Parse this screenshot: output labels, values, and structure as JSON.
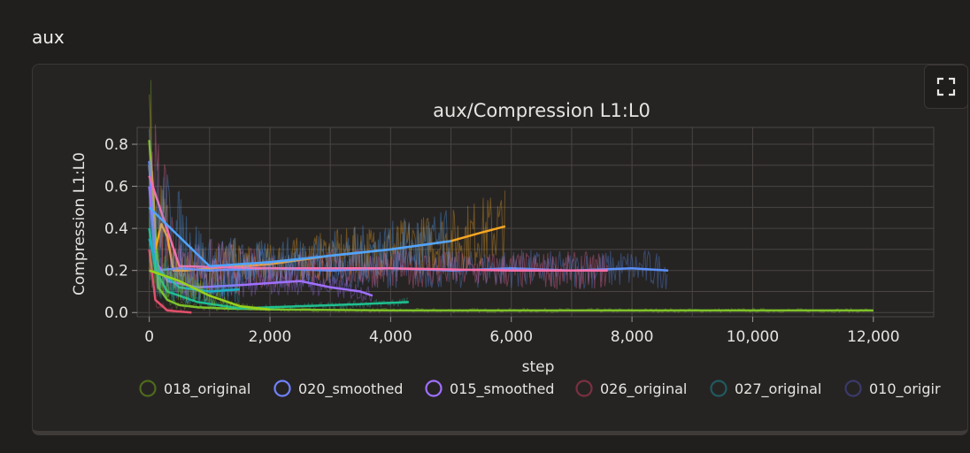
{
  "section": {
    "title": "aux"
  },
  "panel": {
    "fullscreen_icon": "fullscreen-icon"
  },
  "chart_data": {
    "type": "line",
    "title": "aux/Compression L1:L0",
    "xlabel": "step",
    "ylabel": "Compression L1:L0",
    "xlim": [
      -200,
      13000
    ],
    "ylim": [
      -0.02,
      0.88
    ],
    "xticks": [
      0,
      2000,
      4000,
      6000,
      8000,
      10000,
      12000
    ],
    "xtick_labels": [
      "0",
      "2,000",
      "4,000",
      "6,000",
      "8,000",
      "10,000",
      "12,000"
    ],
    "yticks": [
      0.0,
      0.2,
      0.4,
      0.6,
      0.8
    ],
    "ytick_labels": [
      "0.0",
      "0.2",
      "0.4",
      "0.6",
      "0.8"
    ],
    "grid": true,
    "legend_position": "bottom",
    "legend": [
      {
        "name": "018_original",
        "color": "#4e6a1c"
      },
      {
        "name": "020_smoothed",
        "color": "#6f82ff"
      },
      {
        "name": "015_smoothed",
        "color": "#a070ff"
      },
      {
        "name": "026_original",
        "color": "#7a3040"
      },
      {
        "name": "027_original",
        "color": "#205a60"
      },
      {
        "name": "010_origir",
        "color": "#3a3a6a"
      }
    ],
    "series": [
      {
        "color": "#7fc22a",
        "x": [
          0,
          60,
          150,
          300,
          500,
          800,
          1200,
          2000,
          4000,
          6000,
          8000,
          10000,
          12000
        ],
        "y": [
          0.82,
          0.6,
          0.12,
          0.06,
          0.035,
          0.025,
          0.02,
          0.015,
          0.01,
          0.01,
          0.01,
          0.01,
          0.01
        ]
      },
      {
        "color": "#f5a623",
        "x": [
          0,
          100,
          200,
          300,
          400,
          600,
          1000,
          2000,
          3000,
          4000,
          5000,
          5500,
          5900
        ],
        "y": [
          0.7,
          0.3,
          0.42,
          0.36,
          0.2,
          0.2,
          0.21,
          0.23,
          0.27,
          0.3,
          0.34,
          0.38,
          0.41
        ]
      },
      {
        "color": "#5b8ff9",
        "x": [
          0,
          100,
          500,
          1000,
          2000,
          3000,
          4000,
          5000,
          6000,
          7000,
          8000,
          8600
        ],
        "y": [
          0.72,
          0.2,
          0.21,
          0.2,
          0.21,
          0.2,
          0.21,
          0.2,
          0.21,
          0.2,
          0.21,
          0.2
        ]
      },
      {
        "color": "#ff6ea8",
        "x": [
          0,
          500,
          2000,
          4000,
          6000,
          7000,
          7600
        ],
        "y": [
          0.65,
          0.22,
          0.21,
          0.21,
          0.2,
          0.2,
          0.2
        ]
      },
      {
        "color": "#a070ff",
        "x": [
          0,
          100,
          300,
          800,
          1500,
          2500,
          3000,
          3500,
          3700
        ],
        "y": [
          0.6,
          0.25,
          0.15,
          0.12,
          0.13,
          0.15,
          0.12,
          0.1,
          0.08
        ]
      },
      {
        "color": "#4fa3ff",
        "x": [
          0,
          1000,
          2000,
          3000,
          4000,
          5000
        ],
        "y": [
          0.5,
          0.22,
          0.24,
          0.27,
          0.3,
          0.34
        ]
      },
      {
        "color": "#1fbf8f",
        "x": [
          0,
          100,
          300,
          800,
          1500,
          2500,
          3500,
          4300
        ],
        "y": [
          0.4,
          0.2,
          0.1,
          0.05,
          0.02,
          0.03,
          0.04,
          0.05
        ]
      },
      {
        "color": "#1ab0c8",
        "x": [
          0,
          150,
          500,
          1000,
          1500
        ],
        "y": [
          0.35,
          0.2,
          0.12,
          0.1,
          0.11
        ]
      },
      {
        "color": "#e0506a",
        "x": [
          0,
          100,
          300,
          500,
          700
        ],
        "y": [
          0.3,
          0.06,
          0.01,
          0.005,
          0.0
        ]
      },
      {
        "color": "#9ad11c",
        "x": [
          0,
          500,
          1000,
          1500,
          2000
        ],
        "y": [
          0.2,
          0.15,
          0.08,
          0.03,
          0.015
        ]
      }
    ]
  }
}
